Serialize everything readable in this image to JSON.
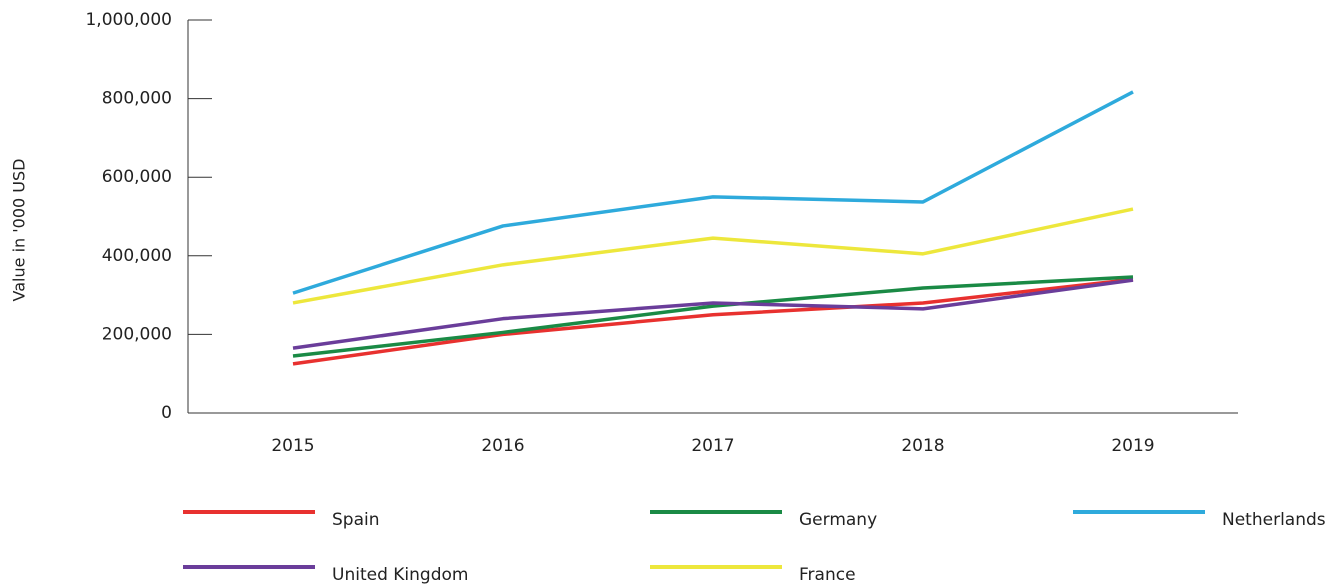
{
  "chart_data": {
    "type": "line",
    "y_axis_label": "Value in '000 USD",
    "categories": [
      "2015",
      "2016",
      "2017",
      "2018",
      "2019"
    ],
    "series": [
      {
        "name": "Spain",
        "color": "#e8312f",
        "values": [
          125000,
          200000,
          250000,
          280000,
          340000
        ]
      },
      {
        "name": "Germany",
        "color": "#1a8a45",
        "values": [
          145000,
          205000,
          272000,
          318000,
          346000
        ]
      },
      {
        "name": "Netherlands",
        "color": "#2eaadc",
        "values": [
          305000,
          476000,
          550000,
          537000,
          817000
        ]
      },
      {
        "name": "United Kingdom",
        "color": "#6a3d9a",
        "values": [
          165000,
          240000,
          280000,
          265000,
          338000
        ]
      },
      {
        "name": "France",
        "color": "#ede73c",
        "values": [
          280000,
          377000,
          445000,
          405000,
          519000
        ]
      }
    ],
    "ylim": [
      0,
      1000000
    ],
    "yticks": [
      0,
      {
        "value": 200000,
        "label": "200,000"
      },
      {
        "value": 400000,
        "label": "400,000"
      },
      {
        "value": 600000,
        "label": "600,000"
      },
      {
        "value": 800000,
        "label": "800,000"
      },
      {
        "value": 1000000,
        "label": "1,000,000"
      }
    ]
  }
}
